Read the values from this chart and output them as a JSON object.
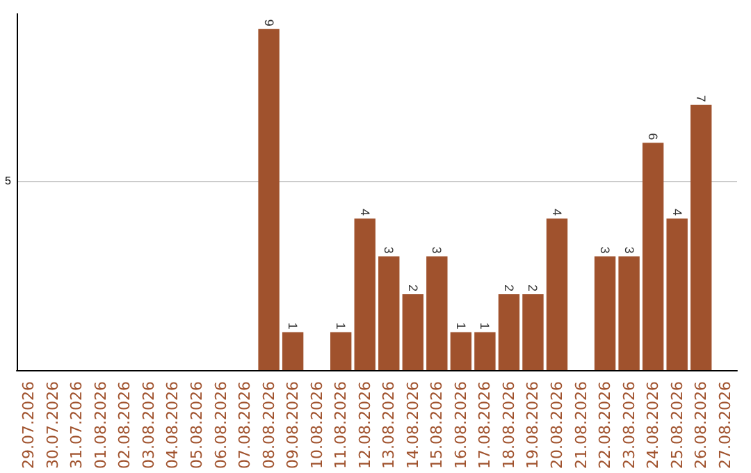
{
  "chart_data": {
    "type": "bar",
    "categories": [
      "29.07.2026",
      "30.07.2026",
      "31.07.2026",
      "01.08.2026",
      "02.08.2026",
      "03.08.2026",
      "04.08.2026",
      "05.08.2026",
      "06.08.2026",
      "07.08.2026",
      "08.08.2026",
      "09.08.2026",
      "10.08.2026",
      "11.08.2026",
      "12.08.2026",
      "13.08.2026",
      "14.08.2026",
      "15.08.2026",
      "16.08.2026",
      "17.08.2026",
      "18.08.2026",
      "19.08.2026",
      "20.08.2026",
      "21.08.2026",
      "22.08.2026",
      "23.08.2026",
      "24.08.2026",
      "25.08.2026",
      "26.08.2026",
      "27.08.2026"
    ],
    "values": [
      0,
      0,
      0,
      0,
      0,
      0,
      0,
      0,
      0,
      0,
      9,
      1,
      0,
      1,
      4,
      3,
      2,
      3,
      1,
      1,
      2,
      2,
      4,
      0,
      3,
      3,
      6,
      4,
      7,
      0
    ],
    "value_labels": [
      null,
      null,
      null,
      null,
      null,
      null,
      null,
      null,
      null,
      null,
      "9",
      "1",
      null,
      "1",
      "4",
      "3",
      "2",
      "3",
      "1",
      "1",
      "2",
      "2",
      "4",
      null,
      "3",
      "3",
      "6",
      "4",
      "7",
      null
    ],
    "color": "#a0522d",
    "ylim": [
      0,
      9.4
    ],
    "yticks": [
      5
    ],
    "grid": "y"
  }
}
